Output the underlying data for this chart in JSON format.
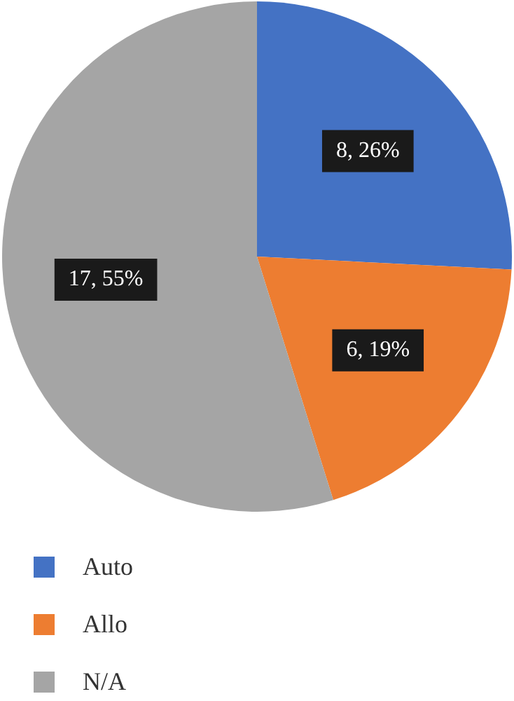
{
  "chart_data": {
    "type": "pie",
    "categories": [
      "Auto",
      "Allo",
      "N/A"
    ],
    "values": [
      8,
      6,
      17
    ],
    "colors": [
      "#4472c4",
      "#ed7d31",
      "#a5a5a5"
    ],
    "value_labels": [
      "8, 26%",
      "6, 19%",
      "17, 55%"
    ],
    "legend": "bottom"
  }
}
